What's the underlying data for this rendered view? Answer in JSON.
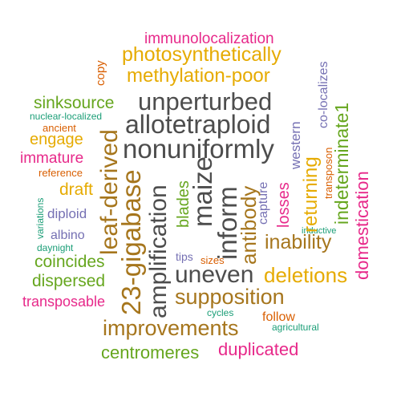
{
  "palette": {
    "gray": "#4d4d4d",
    "magenta": "#e7298a",
    "gold": "#e6ab02",
    "brown": "#a6761d",
    "green": "#66a61e",
    "teal": "#1b9e77",
    "purple": "#7570b3",
    "orange": "#d95f02"
  },
  "words": {
    "immunolocalization": "immunolocalization",
    "photosynthetically": "photosynthetically",
    "copy": "copy",
    "methylation_poor": "methylation-poor",
    "co_localizes": "co-localizes",
    "unperturbed": "unperturbed",
    "sinksource": "sinksource",
    "nuclear_localized": "nuclear-localized",
    "allotetraploid": "allotetraploid",
    "ancient": "ancient",
    "western": "western",
    "engage": "engage",
    "nonuniformly": "nonuniformly",
    "indeterminate1": "indeterminate1",
    "immature": "immature",
    "transposon": "transposon",
    "reference": "reference",
    "leaf_derived": "leaf-derived",
    "blades": "blades",
    "maize": "maize",
    "domestication": "domestication",
    "draft": "draft",
    "gigabase": "23-gigabase",
    "inform": "inform",
    "capture": "capture",
    "returning": "returning",
    "variations": "variations",
    "amplification": "amplification",
    "antibody": "antibody",
    "losses": "losses",
    "diploid": "diploid",
    "inductive": "inductive",
    "albino": "albino",
    "inability": "inability",
    "daynight": "daynight",
    "tips": "tips",
    "sizes": "sizes",
    "coincides": "coincides",
    "uneven": "uneven",
    "deletions": "deletions",
    "dispersed": "dispersed",
    "supposition": "supposition",
    "transposable": "transposable",
    "cycles": "cycles",
    "follow": "follow",
    "improvements": "improvements",
    "agricultural": "agricultural",
    "duplicated": "duplicated",
    "centromeres": "centromeres"
  }
}
